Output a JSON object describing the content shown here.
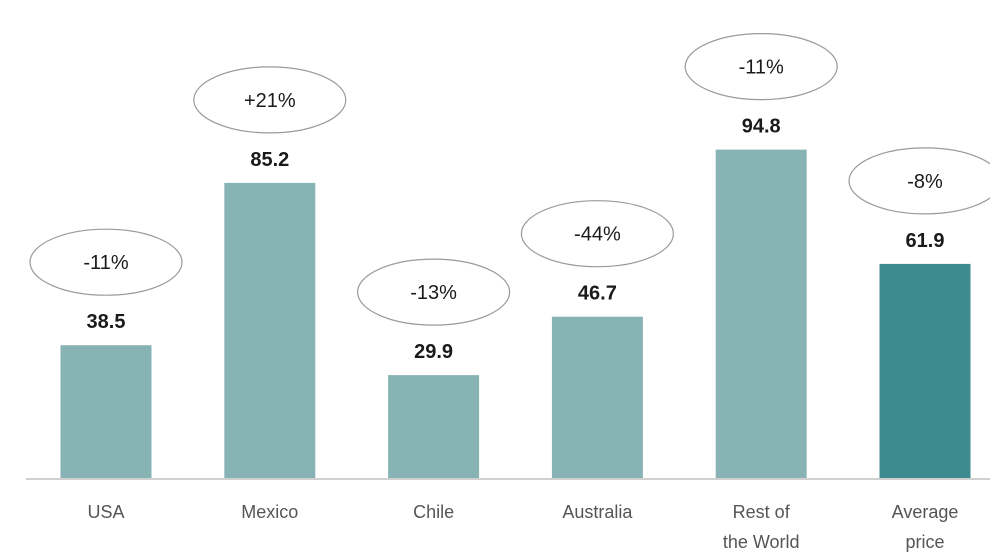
{
  "chart_data": {
    "type": "bar",
    "categories": [
      [
        "USA"
      ],
      [
        "Mexico"
      ],
      [
        "Chile"
      ],
      [
        "Australia"
      ],
      [
        "Rest of",
        "the World"
      ],
      [
        "Average",
        "price"
      ]
    ],
    "values": [
      38.5,
      85.2,
      29.9,
      46.7,
      94.8,
      61.9
    ],
    "value_labels": [
      "38.5",
      "85.2",
      "29.9",
      "46.7",
      "94.8",
      "61.9"
    ],
    "change_labels": [
      "-11%",
      "+21%",
      "-13%",
      "-44%",
      "-11%",
      "-8%"
    ],
    "ylim": [
      0,
      100
    ],
    "grid": false,
    "legend": "none",
    "colors": {
      "bar": "#88b3b4",
      "highlight_bar": "#3d8a8f",
      "axis": "#d0d0d0",
      "ellipse_stroke": "#9a9a9a"
    },
    "highlight_index": 5
  }
}
